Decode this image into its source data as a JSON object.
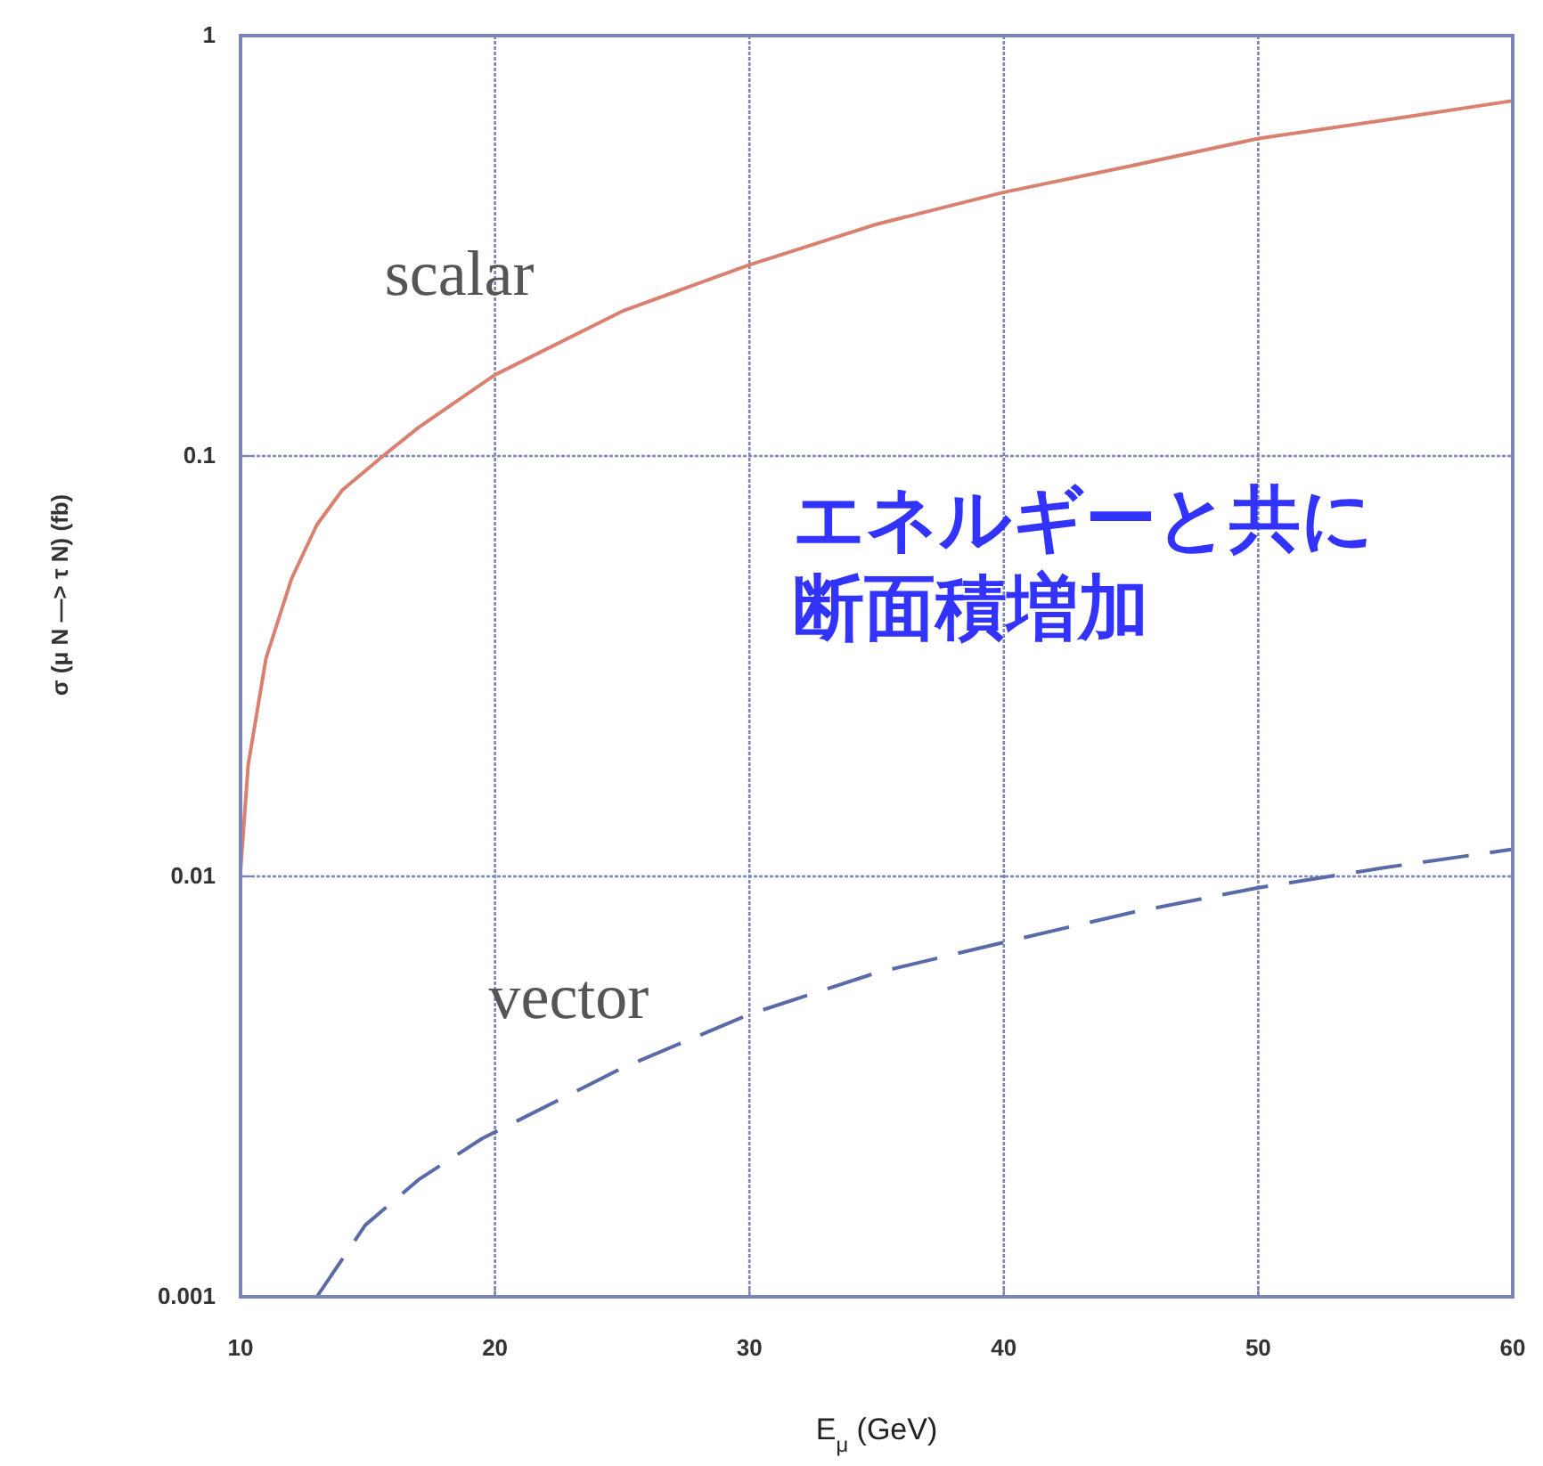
{
  "chart_data": {
    "type": "line",
    "xlabel": "E$_{μ}$ (GeV)",
    "ylabel": "σ (μ N —> τ N) (fb)",
    "log": "y",
    "xlim": [
      10,
      60
    ],
    "ylim": [
      0.001,
      1
    ],
    "xticks": [
      10,
      20,
      30,
      40,
      50,
      60
    ],
    "yticks": [
      0.001,
      0.01,
      0.1,
      1
    ],
    "grid": true,
    "annotations": [
      "エネルギーと共に",
      "断面積増加"
    ],
    "series": [
      {
        "name": "scalar",
        "color": "#d98070",
        "line_style": "solid",
        "x": [
          10,
          10.3,
          11,
          12,
          13,
          14,
          15.6,
          17,
          20,
          25,
          30,
          35,
          40,
          45,
          50,
          55,
          60
        ],
        "values": [
          0.0103,
          0.0184,
          0.033,
          0.051,
          0.0686,
          0.083,
          0.1,
          0.117,
          0.156,
          0.221,
          0.285,
          0.356,
          0.424,
          0.49,
          0.569,
          0.63,
          0.7
        ]
      },
      {
        "name": "vector",
        "color": "#5a6aa8",
        "line_style": "dashed",
        "x": [
          13,
          14.9,
          17,
          19.5,
          25,
          30,
          35,
          40,
          45,
          50,
          55,
          60
        ],
        "values": [
          0.001,
          0.00148,
          0.0019,
          0.00238,
          0.0035,
          0.0047,
          0.0059,
          0.00697,
          0.0082,
          0.0094,
          0.0105,
          0.0116
        ]
      }
    ]
  }
}
